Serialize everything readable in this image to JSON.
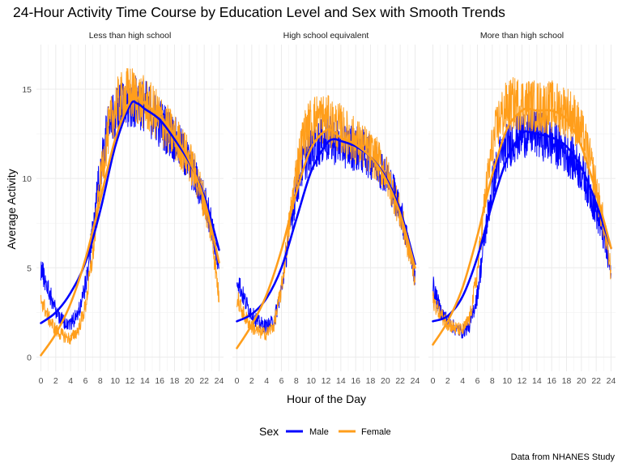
{
  "chart_data": {
    "type": "line",
    "title": "24-Hour Activity Time Course by Education Level and Sex with Smooth Trends",
    "xlabel": "Hour of the Day",
    "ylabel": "Average Activity",
    "caption": "Data from NHANES Study",
    "xlim": [
      -0.6,
      24.6
    ],
    "ylim": [
      -0.8,
      17.5
    ],
    "x_ticks": [
      0,
      2,
      4,
      6,
      8,
      10,
      12,
      14,
      16,
      18,
      20,
      22,
      24
    ],
    "y_ticks": [
      0,
      5,
      10,
      15
    ],
    "grid": true,
    "legend": {
      "title": "Sex",
      "position": "bottom",
      "entries": [
        {
          "name": "Male",
          "color": "#0000ff"
        },
        {
          "name": "Female",
          "color": "#ff9e1b"
        }
      ]
    },
    "panels": [
      {
        "name": "Less than high school",
        "series": [
          {
            "name": "Male",
            "color": "#0000ff",
            "raw": [
              [
                0,
                5.0
              ],
              [
                1,
                3.8
              ],
              [
                2,
                2.6
              ],
              [
                3,
                2.0
              ],
              [
                4,
                1.9
              ],
              [
                5,
                2.4
              ],
              [
                6,
                4.0
              ],
              [
                7,
                7.0
              ],
              [
                8,
                10.5
              ],
              [
                9,
                12.8
              ],
              [
                10,
                13.5
              ],
              [
                11,
                14.0
              ],
              [
                12,
                14.2
              ],
              [
                13,
                14.3
              ],
              [
                14,
                14.1
              ],
              [
                15,
                13.6
              ],
              [
                16,
                13.1
              ],
              [
                17,
                12.7
              ],
              [
                18,
                12.2
              ],
              [
                19,
                11.5
              ],
              [
                20,
                10.8
              ],
              [
                21,
                9.8
              ],
              [
                22,
                8.8
              ],
              [
                23,
                7.5
              ],
              [
                24,
                4.5
              ]
            ],
            "smooth": [
              [
                0,
                1.9
              ],
              [
                2,
                2.5
              ],
              [
                4,
                3.6
              ],
              [
                6,
                5.3
              ],
              [
                8,
                8.2
              ],
              [
                10,
                11.8
              ],
              [
                12,
                14.1
              ],
              [
                13,
                14.2
              ],
              [
                14,
                13.9
              ],
              [
                16,
                13.3
              ],
              [
                18,
                12.2
              ],
              [
                20,
                10.9
              ],
              [
                22,
                9.0
              ],
              [
                24,
                6.0
              ]
            ]
          },
          {
            "name": "Female",
            "color": "#ff9e1b",
            "raw": [
              [
                0,
                3.3
              ],
              [
                1,
                2.2
              ],
              [
                2,
                1.5
              ],
              [
                3,
                1.2
              ],
              [
                4,
                1.0
              ],
              [
                5,
                1.5
              ],
              [
                6,
                2.8
              ],
              [
                7,
                5.8
              ],
              [
                8,
                9.8
              ],
              [
                9,
                12.5
              ],
              [
                10,
                14.0
              ],
              [
                11,
                14.5
              ],
              [
                12,
                14.8
              ],
              [
                13,
                14.5
              ],
              [
                14,
                14.2
              ],
              [
                15,
                13.8
              ],
              [
                16,
                13.4
              ],
              [
                17,
                12.8
              ],
              [
                18,
                12.3
              ],
              [
                19,
                11.7
              ],
              [
                20,
                11.0
              ],
              [
                21,
                10.0
              ],
              [
                22,
                8.7
              ],
              [
                23,
                7.0
              ],
              [
                24,
                3.2
              ]
            ],
            "smooth": [
              [
                0,
                0.1
              ],
              [
                2,
                1.3
              ],
              [
                4,
                3.0
              ],
              [
                6,
                5.5
              ],
              [
                8,
                8.8
              ],
              [
                10,
                12.2
              ],
              [
                12,
                14.3
              ],
              [
                13,
                14.5
              ],
              [
                14,
                14.2
              ],
              [
                16,
                13.5
              ],
              [
                18,
                12.4
              ],
              [
                20,
                11.0
              ],
              [
                22,
                8.8
              ],
              [
                24,
                5.3
              ]
            ]
          }
        ]
      },
      {
        "name": "High school equivalent",
        "series": [
          {
            "name": "Male",
            "color": "#0000ff",
            "raw": [
              [
                0,
                4.5
              ],
              [
                1,
                3.2
              ],
              [
                2,
                2.4
              ],
              [
                3,
                1.9
              ],
              [
                4,
                1.7
              ],
              [
                5,
                2.0
              ],
              [
                6,
                3.8
              ],
              [
                7,
                6.8
              ],
              [
                8,
                9.4
              ],
              [
                9,
                11.0
              ],
              [
                10,
                11.6
              ],
              [
                11,
                12.0
              ],
              [
                12,
                12.2
              ],
              [
                13,
                12.1
              ],
              [
                14,
                12.0
              ],
              [
                15,
                11.8
              ],
              [
                16,
                11.7
              ],
              [
                17,
                11.5
              ],
              [
                18,
                11.2
              ],
              [
                19,
                10.8
              ],
              [
                20,
                10.3
              ],
              [
                21,
                9.4
              ],
              [
                22,
                8.2
              ],
              [
                23,
                6.5
              ],
              [
                24,
                4.5
              ]
            ],
            "smooth": [
              [
                0,
                2.0
              ],
              [
                2,
                2.4
              ],
              [
                4,
                3.3
              ],
              [
                6,
                5.0
              ],
              [
                8,
                7.7
              ],
              [
                10,
                10.4
              ],
              [
                12,
                11.9
              ],
              [
                13,
                12.2
              ],
              [
                14,
                12.1
              ],
              [
                16,
                11.8
              ],
              [
                18,
                11.2
              ],
              [
                20,
                10.1
              ],
              [
                22,
                8.2
              ],
              [
                24,
                5.2
              ]
            ]
          },
          {
            "name": "Female",
            "color": "#ff9e1b",
            "raw": [
              [
                0,
                3.3
              ],
              [
                1,
                2.3
              ],
              [
                2,
                1.7
              ],
              [
                3,
                1.4
              ],
              [
                4,
                1.3
              ],
              [
                5,
                1.8
              ],
              [
                6,
                3.8
              ],
              [
                7,
                7.3
              ],
              [
                8,
                10.4
              ],
              [
                9,
                12.4
              ],
              [
                10,
                13.2
              ],
              [
                11,
                13.4
              ],
              [
                12,
                13.3
              ],
              [
                13,
                13.0
              ],
              [
                14,
                12.8
              ],
              [
                15,
                12.4
              ],
              [
                16,
                12.1
              ],
              [
                17,
                11.8
              ],
              [
                18,
                11.4
              ],
              [
                19,
                11.0
              ],
              [
                20,
                10.3
              ],
              [
                21,
                9.3
              ],
              [
                22,
                8.0
              ],
              [
                23,
                6.3
              ],
              [
                24,
                4.4
              ]
            ],
            "smooth": [
              [
                0,
                0.5
              ],
              [
                2,
                1.8
              ],
              [
                4,
                3.5
              ],
              [
                6,
                6.0
              ],
              [
                8,
                9.2
              ],
              [
                10,
                11.7
              ],
              [
                12,
                12.7
              ],
              [
                13,
                12.6
              ],
              [
                14,
                12.3
              ],
              [
                16,
                11.9
              ],
              [
                18,
                11.2
              ],
              [
                20,
                10.0
              ],
              [
                22,
                8.0
              ],
              [
                24,
                5.0
              ]
            ]
          }
        ]
      },
      {
        "name": "More than high school",
        "series": [
          {
            "name": "Male",
            "color": "#0000ff",
            "raw": [
              [
                0,
                4.0
              ],
              [
                1,
                2.6
              ],
              [
                2,
                2.0
              ],
              [
                3,
                1.6
              ],
              [
                4,
                1.4
              ],
              [
                5,
                1.8
              ],
              [
                6,
                3.5
              ],
              [
                7,
                6.8
              ],
              [
                8,
                9.6
              ],
              [
                9,
                11.2
              ],
              [
                10,
                11.8
              ],
              [
                11,
                12.2
              ],
              [
                12,
                12.5
              ],
              [
                13,
                12.6
              ],
              [
                14,
                12.5
              ],
              [
                15,
                12.3
              ],
              [
                16,
                12.0
              ],
              [
                17,
                11.8
              ],
              [
                18,
                11.5
              ],
              [
                19,
                11.0
              ],
              [
                20,
                10.4
              ],
              [
                21,
                9.4
              ],
              [
                22,
                8.2
              ],
              [
                23,
                6.7
              ],
              [
                24,
                4.6
              ]
            ],
            "smooth": [
              [
                0,
                2.0
              ],
              [
                2,
                2.3
              ],
              [
                4,
                3.4
              ],
              [
                6,
                5.6
              ],
              [
                8,
                8.6
              ],
              [
                10,
                11.1
              ],
              [
                12,
                12.5
              ],
              [
                13,
                12.6
              ],
              [
                14,
                12.5
              ],
              [
                16,
                12.3
              ],
              [
                18,
                11.8
              ],
              [
                20,
                10.6
              ],
              [
                22,
                8.6
              ],
              [
                24,
                6.1
              ]
            ]
          },
          {
            "name": "Female",
            "color": "#ff9e1b",
            "raw": [
              [
                0,
                3.2
              ],
              [
                1,
                2.4
              ],
              [
                2,
                1.9
              ],
              [
                3,
                1.6
              ],
              [
                4,
                1.5
              ],
              [
                5,
                2.2
              ],
              [
                6,
                4.8
              ],
              [
                7,
                8.8
              ],
              [
                8,
                11.8
              ],
              [
                9,
                13.4
              ],
              [
                10,
                14.0
              ],
              [
                11,
                14.2
              ],
              [
                12,
                14.2
              ],
              [
                13,
                14.1
              ],
              [
                14,
                14.0
              ],
              [
                15,
                14.0
              ],
              [
                16,
                14.0
              ],
              [
                17,
                13.9
              ],
              [
                18,
                13.8
              ],
              [
                19,
                13.4
              ],
              [
                20,
                12.6
              ],
              [
                21,
                11.3
              ],
              [
                22,
                9.5
              ],
              [
                23,
                7.4
              ],
              [
                24,
                4.8
              ]
            ],
            "smooth": [
              [
                0,
                0.7
              ],
              [
                2,
                2.0
              ],
              [
                4,
                3.9
              ],
              [
                6,
                6.8
              ],
              [
                8,
                10.2
              ],
              [
                10,
                12.8
              ],
              [
                12,
                13.8
              ],
              [
                13,
                13.9
              ],
              [
                14,
                13.8
              ],
              [
                16,
                13.8
              ],
              [
                18,
                13.3
              ],
              [
                20,
                11.8
              ],
              [
                22,
                9.2
              ],
              [
                24,
                6.1
              ]
            ]
          }
        ]
      }
    ]
  }
}
